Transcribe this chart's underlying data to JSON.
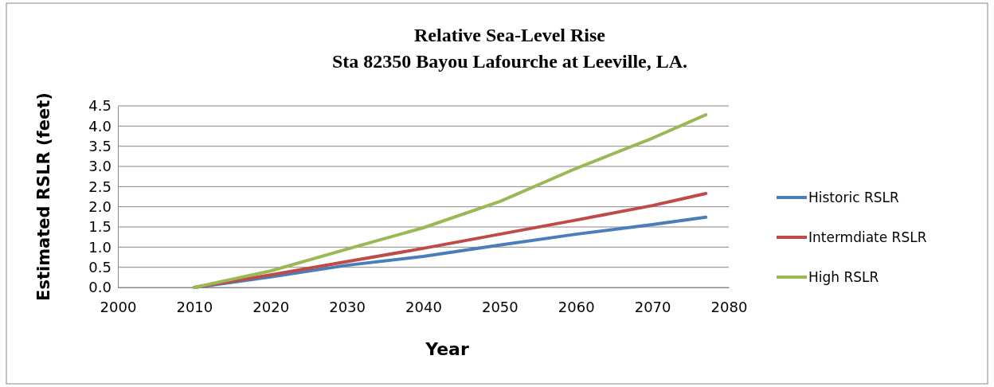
{
  "chart_data": {
    "type": "line",
    "title": "Relative Sea-Level Rise\nSta 82350 Bayou Lafourche at Leeville, LA.",
    "xlabel": "Year",
    "ylabel": "Estimated RSLR (feet)",
    "x": [
      2010,
      2020,
      2030,
      2040,
      2050,
      2060,
      2070,
      2077
    ],
    "series": [
      {
        "name": "Historic RSLR",
        "color": "#4a7ebb",
        "values": [
          0,
          0.26,
          0.55,
          0.77,
          1.05,
          1.32,
          1.56,
          1.74
        ]
      },
      {
        "name": "Intermdiate RSLR",
        "color": "#be4b48",
        "values": [
          0,
          0.31,
          0.64,
          0.97,
          1.32,
          1.67,
          2.03,
          2.33
        ]
      },
      {
        "name": "High RSLR",
        "color": "#98b954",
        "values": [
          0,
          0.41,
          0.95,
          1.48,
          2.13,
          2.95,
          3.7,
          4.28
        ]
      }
    ],
    "xlim": [
      2000,
      2080
    ],
    "xticks": [
      2000,
      2010,
      2020,
      2030,
      2040,
      2050,
      2060,
      2070,
      2080
    ],
    "ylim": [
      0,
      4.5
    ],
    "yticks": [
      {
        "value": 0,
        "label": "0.0"
      },
      {
        "value": 0.5,
        "label": "0.5"
      },
      {
        "value": 1,
        "label": "1.0"
      },
      {
        "value": 1.5,
        "label": "1.5"
      },
      {
        "value": 2,
        "label": "2.0"
      },
      {
        "value": 2.5,
        "label": "2.5"
      },
      {
        "value": 3,
        "label": "3.0"
      },
      {
        "value": 3.5,
        "label": "3.5"
      },
      {
        "value": 4,
        "label": "4.0"
      },
      {
        "value": 4.5,
        "label": "4.5"
      }
    ],
    "grid": "y",
    "legend": "right",
    "marker": "none",
    "line_style": "solid"
  }
}
